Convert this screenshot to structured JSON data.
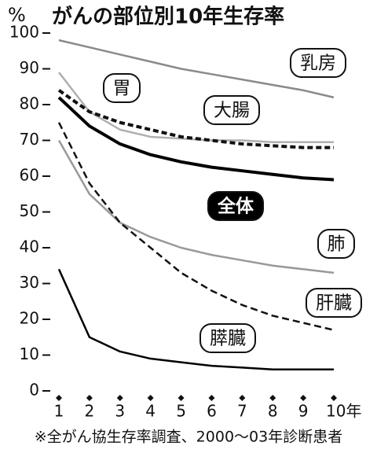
{
  "chart_data": {
    "type": "line",
    "title": "がんの部位別10年生存率",
    "y_label": "%",
    "footnote": "※全がん協生存率調査、2000～03年診断患者",
    "categories": [
      "1",
      "2",
      "3",
      "4",
      "5",
      "6",
      "7",
      "8",
      "9",
      "10年"
    ],
    "ylim": [
      0,
      100
    ],
    "yticks": [
      0,
      10,
      20,
      30,
      40,
      50,
      60,
      70,
      80,
      90,
      100
    ],
    "series": [
      {
        "name": "乳房",
        "color": "#8a8a8a",
        "dashed": false,
        "bold": false,
        "values": [
          98,
          96,
          94,
          92,
          90,
          88.5,
          87,
          85.5,
          84,
          82
        ]
      },
      {
        "name": "胃",
        "color": "#b0b0b0",
        "dashed": false,
        "bold": false,
        "values": [
          89,
          78,
          73,
          71,
          70.5,
          70,
          70,
          69.5,
          69.5,
          69.5
        ]
      },
      {
        "name": "大腸",
        "color": "#111111",
        "dashed": true,
        "bold": true,
        "values": [
          84,
          78,
          75,
          73,
          71,
          70,
          69,
          68.5,
          68,
          68
        ]
      },
      {
        "name": "全体",
        "color": "#000000",
        "dashed": false,
        "bold": true,
        "values": [
          82,
          74,
          69,
          66,
          64,
          62.5,
          61.5,
          60.5,
          59.5,
          59
        ]
      },
      {
        "name": "肺",
        "color": "#999999",
        "dashed": false,
        "bold": false,
        "values": [
          70,
          55,
          47,
          43,
          40,
          38,
          36.5,
          35,
          34,
          33
        ]
      },
      {
        "name": "肝臓",
        "color": "#111111",
        "dashed": true,
        "bold": false,
        "values": [
          75,
          58,
          47,
          40,
          33,
          28,
          24,
          21,
          19,
          17
        ]
      },
      {
        "name": "膵臓",
        "color": "#000000",
        "dashed": false,
        "bold": false,
        "values": [
          34,
          15,
          11,
          9,
          8,
          7,
          6.5,
          6,
          6,
          6
        ]
      }
    ]
  }
}
